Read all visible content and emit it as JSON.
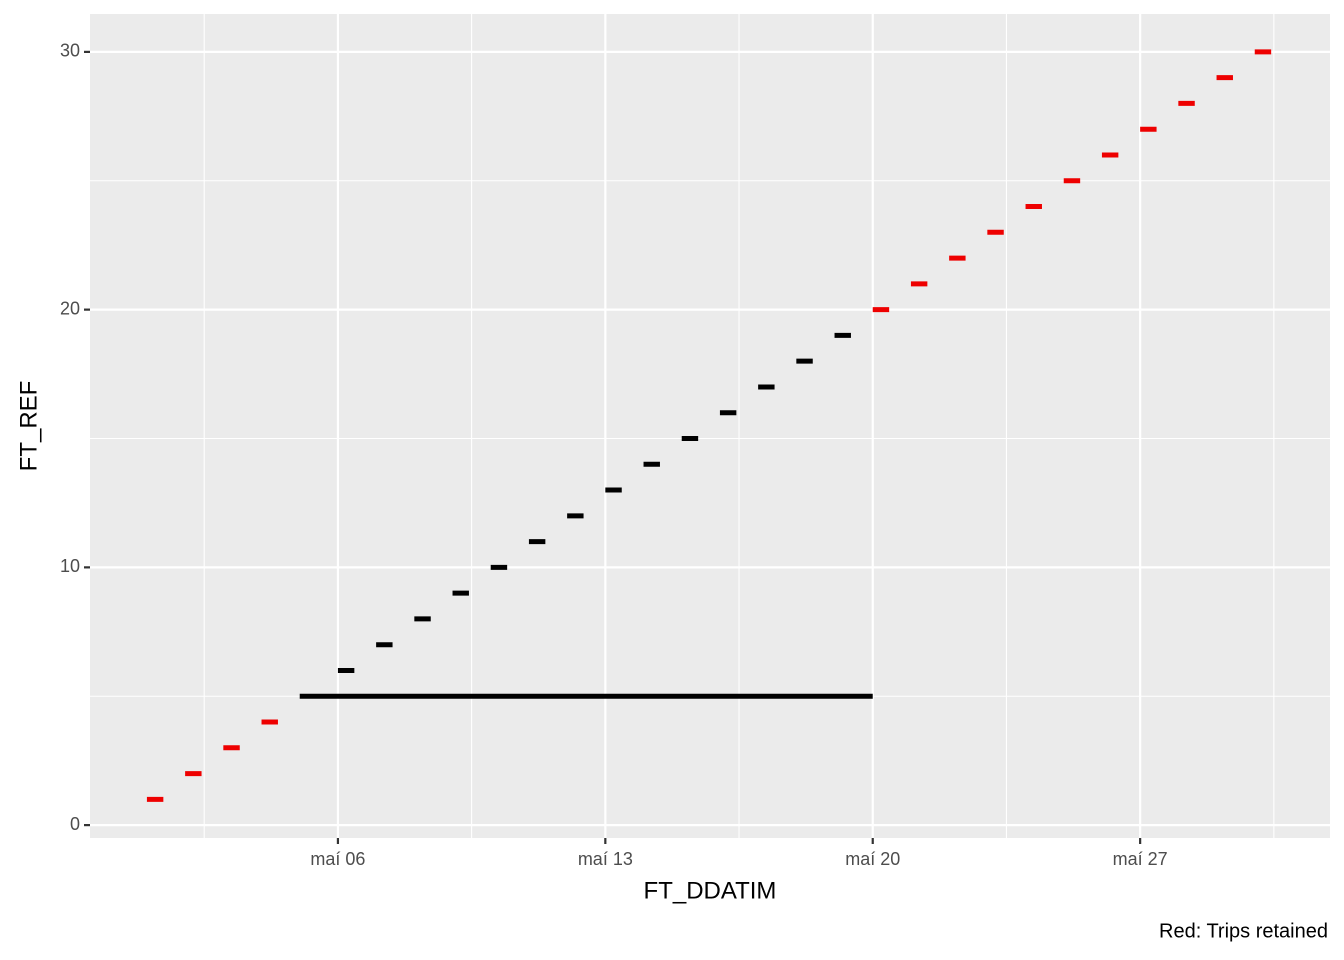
{
  "chart_data": {
    "type": "segment",
    "x_label": "FT_DDATIM",
    "y_label": "FT_REF",
    "caption": "Red: Trips retained",
    "xlim": [
      -0.49,
      31.97
    ],
    "ylim": [
      -0.5,
      31.47
    ],
    "xticks": [
      {
        "value": 6,
        "label": "maí 06"
      },
      {
        "value": 13,
        "label": "maí 13"
      },
      {
        "value": 20,
        "label": "maí 20"
      },
      {
        "value": 27,
        "label": "maí 27"
      }
    ],
    "xminor": [
      2.5,
      9.5,
      16.5,
      23.5,
      30.5
    ],
    "yticks": [
      0,
      10,
      20,
      30
    ],
    "yminor": [
      5,
      15,
      25
    ],
    "grid": true,
    "series": [
      {
        "color": "#ee0000",
        "y": [
          1,
          2,
          3,
          4,
          20,
          21,
          22,
          23,
          24,
          25,
          26,
          27,
          28,
          29,
          30
        ],
        "x_start": [
          1,
          2,
          3,
          4,
          20,
          21,
          22,
          23,
          24,
          25,
          26,
          27,
          28,
          29,
          30
        ],
        "x_end": [
          1.43,
          2.43,
          3.43,
          4.43,
          20.43,
          21.43,
          22.43,
          23.43,
          24.43,
          25.43,
          26.43,
          27.43,
          28.43,
          29.43,
          30.43
        ]
      },
      {
        "color": "#000000",
        "y": [
          5,
          6,
          7,
          8,
          9,
          10,
          11,
          12,
          13,
          14,
          15,
          16,
          17,
          18,
          19
        ],
        "x_start": [
          5,
          6,
          7,
          8,
          9,
          10,
          11,
          12,
          13,
          14,
          15,
          16,
          17,
          18,
          19
        ],
        "x_end": [
          20,
          6.43,
          7.43,
          8.43,
          9.43,
          10.43,
          11.43,
          12.43,
          13.43,
          14.43,
          15.43,
          16.43,
          17.43,
          18.43,
          19.43
        ]
      }
    ]
  }
}
